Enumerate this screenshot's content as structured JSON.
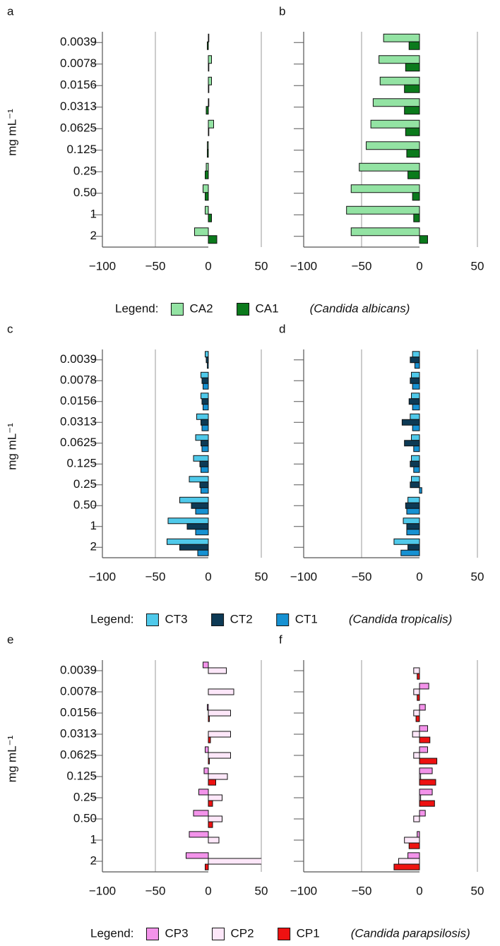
{
  "chart_data": [
    {
      "type": "bar",
      "orientation": "horizontal",
      "panel": "a",
      "ylabel": "mg mL⁻¹",
      "categories": [
        "0.0039",
        "0.0078",
        "0.0156",
        "0.0313",
        "0.0625",
        "0.125",
        "0.25",
        "0.50",
        "1",
        "2"
      ],
      "series": [
        {
          "name": "CA2",
          "color": "#93e3a3",
          "values": [
            0.5,
            3,
            3,
            0.5,
            5,
            -1,
            -2,
            -5,
            -3,
            -13
          ]
        },
        {
          "name": "CA1",
          "color": "#0b7a1c",
          "values": [
            -1,
            0.5,
            0.5,
            -2,
            0.5,
            -1,
            -3,
            -3,
            3,
            8
          ]
        }
      ],
      "xlim": [
        -100,
        50
      ],
      "xticks": [
        {
          "value": -100,
          "label": "−100"
        },
        {
          "value": -50,
          "label": "−50"
        },
        0,
        50
      ],
      "grid": true,
      "legend_title": "Legend:",
      "legend_note": "(Candida albicans)"
    },
    {
      "type": "bar",
      "orientation": "horizontal",
      "panel": "b",
      "categories": [
        null,
        null,
        null,
        null,
        null,
        null,
        null,
        null,
        null,
        null
      ],
      "series": [
        {
          "name": "CA2",
          "color": "#93e3a3",
          "values": [
            -31,
            -35,
            -34,
            -40,
            -42,
            -46,
            -52,
            -59,
            -63,
            -59
          ]
        },
        {
          "name": "CA1",
          "color": "#0b7a1c",
          "values": [
            -9,
            -12,
            -13,
            -13,
            -12,
            -11,
            -10,
            -6,
            -5,
            7
          ]
        }
      ],
      "xlim": [
        -100,
        50
      ],
      "xticks": [
        {
          "value": -100,
          "label": "−100"
        },
        {
          "value": -50,
          "label": "−50"
        },
        0,
        50
      ],
      "grid": true
    },
    {
      "type": "bar",
      "orientation": "horizontal",
      "panel": "c",
      "ylabel": "mg mL⁻¹",
      "categories": [
        "0.0039",
        "0.0078",
        "0.0156",
        "0.0313",
        "0.0625",
        "0.125",
        "0.25",
        "0.50",
        "1",
        "2"
      ],
      "series": [
        {
          "name": "CT3",
          "color": "#4fc9ea",
          "values": [
            -3,
            -7,
            -7,
            -11,
            -12,
            -14,
            -18,
            -27,
            -38,
            -39
          ]
        },
        {
          "name": "CT2",
          "color": "#0d3a55",
          "values": [
            -2,
            -6,
            -6,
            -7,
            -7,
            -8,
            -8,
            -16,
            -20,
            -27
          ]
        },
        {
          "name": "CT1",
          "color": "#1691d2",
          "values": [
            -1,
            -5,
            -5,
            -6,
            -6,
            -7,
            -7,
            -12,
            -12,
            -10
          ]
        }
      ],
      "xlim": [
        -100,
        50
      ],
      "xticks": [
        {
          "value": -100,
          "label": "−100"
        },
        {
          "value": -50,
          "label": "−50"
        },
        0,
        50
      ],
      "grid": true,
      "legend_title": "Legend:",
      "legend_note": "(Candida tropicalis)"
    },
    {
      "type": "bar",
      "orientation": "horizontal",
      "panel": "d",
      "categories": [
        null,
        null,
        null,
        null,
        null,
        null,
        null,
        null,
        null,
        null
      ],
      "series": [
        {
          "name": "CT3",
          "color": "#4fc9ea",
          "values": [
            -6,
            -7,
            -7,
            -8,
            -7,
            -7,
            -7,
            -10,
            -14,
            -22
          ]
        },
        {
          "name": "CT2",
          "color": "#0d3a55",
          "values": [
            -8,
            -8,
            -9,
            -15,
            -13,
            -8,
            -8,
            -12,
            -11,
            -10
          ]
        },
        {
          "name": "CT1",
          "color": "#1691d2",
          "values": [
            -4,
            -6,
            -6,
            -6,
            -5,
            -5,
            2,
            -11,
            -11,
            -16
          ]
        }
      ],
      "xlim": [
        -100,
        50
      ],
      "xticks": [
        {
          "value": -100,
          "label": "−100"
        },
        {
          "value": -50,
          "label": "−50"
        },
        0,
        50
      ],
      "grid": true
    },
    {
      "type": "bar",
      "orientation": "horizontal",
      "panel": "e",
      "ylabel": "mg mL⁻¹",
      "categories": [
        "0.0039",
        "0.0078",
        "0.0156",
        "0.0313",
        "0.0625",
        "0.125",
        "0.25",
        "0.50",
        "1",
        "2"
      ],
      "series": [
        {
          "name": "CP3",
          "color": "#f393ea",
          "values": [
            -5,
            0,
            -1,
            0,
            -3,
            -4,
            -9,
            -14,
            -18,
            -21
          ]
        },
        {
          "name": "CP2",
          "color": "#fde7f9",
          "values": [
            17,
            24,
            21,
            21,
            21,
            18,
            13,
            13,
            10,
            55
          ]
        },
        {
          "name": "CP1",
          "color": "#ee1111",
          "values": [
            0,
            0,
            1,
            2,
            1,
            7,
            4,
            4,
            0,
            -3
          ]
        }
      ],
      "xlim": [
        -100,
        50
      ],
      "xticks": [
        {
          "value": -100,
          "label": "−100"
        },
        {
          "value": -50,
          "label": "−50"
        },
        0,
        50
      ],
      "grid": true,
      "legend_title": "Legend:",
      "legend_note": "(Candida parapsilosis)"
    },
    {
      "type": "bar",
      "orientation": "horizontal",
      "panel": "f",
      "categories": [
        null,
        null,
        null,
        null,
        null,
        null,
        null,
        null,
        null,
        null
      ],
      "series": [
        {
          "name": "CP3",
          "color": "#f393ea",
          "values": [
            0,
            8,
            5,
            7,
            7,
            11,
            11,
            5,
            -2,
            -10
          ]
        },
        {
          "name": "CP2",
          "color": "#fde7f9",
          "values": [
            -5,
            -5,
            -5,
            -6,
            -5,
            1,
            1,
            -5,
            -13,
            -18
          ]
        },
        {
          "name": "CP1",
          "color": "#ee1111",
          "values": [
            -2,
            -2,
            -3,
            9,
            15,
            14,
            13,
            0,
            -9,
            -22
          ]
        }
      ],
      "xlim": [
        -100,
        50
      ],
      "xticks": [
        {
          "value": -100,
          "label": "−100"
        },
        {
          "value": -50,
          "label": "−50"
        },
        0,
        50
      ],
      "grid": true
    }
  ]
}
